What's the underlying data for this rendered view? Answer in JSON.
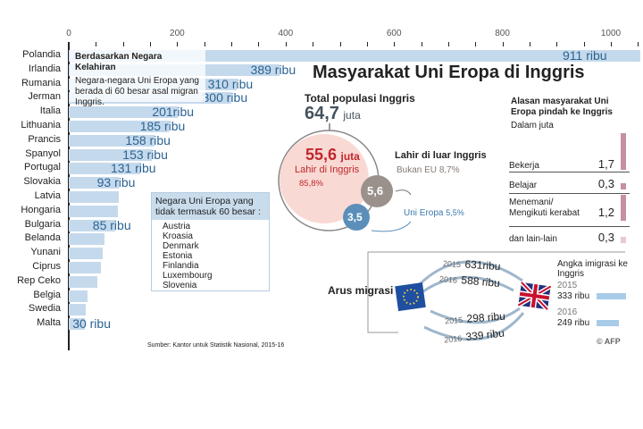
{
  "chart_data": {
    "type": "bar",
    "title": "Berdasarkan Negara Kelahiran",
    "subtitle": "Negara-negara Uni Eropa yang berada di 60 besar asal migran Inggris.",
    "xlim": [
      0,
      1000
    ],
    "xticks": [
      "0",
      "200",
      "400",
      "600",
      "800",
      "1000"
    ],
    "categories": [
      "Polandia",
      "Irlandia",
      "Rumania",
      "Jerman",
      "Italia",
      "Lithuania",
      "Prancis",
      "Spanyol",
      "Portugal",
      "Slovakia",
      "Latvia",
      "Hongaria",
      "Bulgaria",
      "Belanda",
      "Yunani",
      "Ciprus",
      "Rep Ceko",
      "Belgia",
      "Swedia",
      "Malta"
    ],
    "values": [
      911,
      389,
      310,
      300,
      201,
      185,
      158,
      153,
      131,
      93,
      92,
      91,
      85,
      66,
      62,
      60,
      52,
      34,
      32,
      30
    ],
    "labels": [
      "911 ribu",
      "389 ribu",
      "310 ribu",
      "300 ribu",
      "201ribu",
      "185 ribu",
      "158 ribu",
      "153 ribu",
      "131 ribu",
      "93 ribu",
      "",
      "",
      "85 ribu",
      "",
      "",
      "",
      "",
      "",
      "",
      "30 ribu"
    ]
  },
  "not_top60": {
    "title": "Negara Uni Eropa yang tidak termasuk 60 besar :",
    "items": [
      "Austria",
      "Kroasia",
      "Denmark",
      "Estonia",
      "Finlandia",
      "Luxembourg",
      "Slovenia"
    ]
  },
  "source": "Sumber: Kantor untuk Statistik Nasional, 2015-16",
  "main_title": "Masyarakat Uni Eropa di Inggris",
  "population": {
    "label": "Total populasi Inggris",
    "value": "64,7",
    "unit": "juta",
    "born_uk_value": "55,6",
    "born_uk_unit": "juta",
    "born_uk_label": "Lahir di Inggris",
    "born_uk_pct": "85,8%",
    "born_abroad_label": "Lahir di luar Inggris",
    "non_eu_label": "Bukan EU",
    "non_eu_pct": "8,7%",
    "non_eu_value": "5,6",
    "eu_label": "Uni Eropa",
    "eu_pct": "5,5%",
    "eu_value": "3,5"
  },
  "reasons": {
    "title": "Alasan masyarakat Uni Eropa pindah ke Inggris",
    "unit": "Dalam juta",
    "rows": [
      {
        "label": "Bekerja",
        "value": "1,7",
        "num": 1.7
      },
      {
        "label": "Belajar",
        "value": "0,3",
        "num": 0.3
      },
      {
        "label": "Menemani/ Mengikuti kerabat",
        "value": "1,2",
        "num": 1.2
      },
      {
        "label": "dan lain-lain",
        "value": "0,3",
        "num": 0.3
      }
    ]
  },
  "migration": {
    "title": "Arus migrasi",
    "in_2015": "631ribu",
    "in_2016": "588 ribu",
    "out_2015": "298 ribu",
    "out_2016": "339 ribu",
    "y2015": "2015",
    "y2016": "2016",
    "legend_title": "Angka imigrasi ke Inggris",
    "net": [
      {
        "year": "2015",
        "value": "333 ribu",
        "num": 333
      },
      {
        "year": "2016",
        "value": "249 ribu",
        "num": 249
      }
    ]
  },
  "credit": "© AFP",
  "colors": {
    "bar": "#c5d9ec",
    "value": "#2a6392",
    "red": "#c0272d",
    "pink": "#f9d9d3",
    "grey": "#9b918c",
    "blue": "#5b8fb9",
    "reason": "#c68fa2"
  }
}
